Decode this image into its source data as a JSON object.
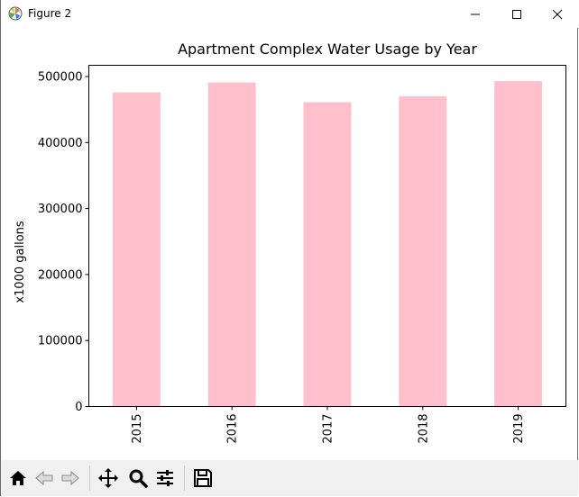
{
  "window": {
    "title": "Figure 2"
  },
  "chart_data": {
    "type": "bar",
    "title": "Apartment Complex Water Usage by Year",
    "xlabel": "",
    "ylabel": "x1000 gallons",
    "categories": [
      "2015",
      "2016",
      "2017",
      "2018",
      "2019"
    ],
    "values": [
      476000,
      491000,
      461000,
      470000,
      493000
    ],
    "ylim": [
      0,
      517000
    ],
    "yticks": [
      0,
      100000,
      200000,
      300000,
      400000,
      500000
    ],
    "ytick_labels": [
      "0",
      "100000",
      "200000",
      "300000",
      "400000",
      "500000"
    ],
    "bar_color": "#ffc0cb",
    "grid": false,
    "legend": "none"
  },
  "toolbar": {
    "buttons": [
      "home-icon",
      "back-icon",
      "forward-icon",
      "pan-icon",
      "zoom-icon",
      "configure-icon",
      "save-icon"
    ]
  }
}
